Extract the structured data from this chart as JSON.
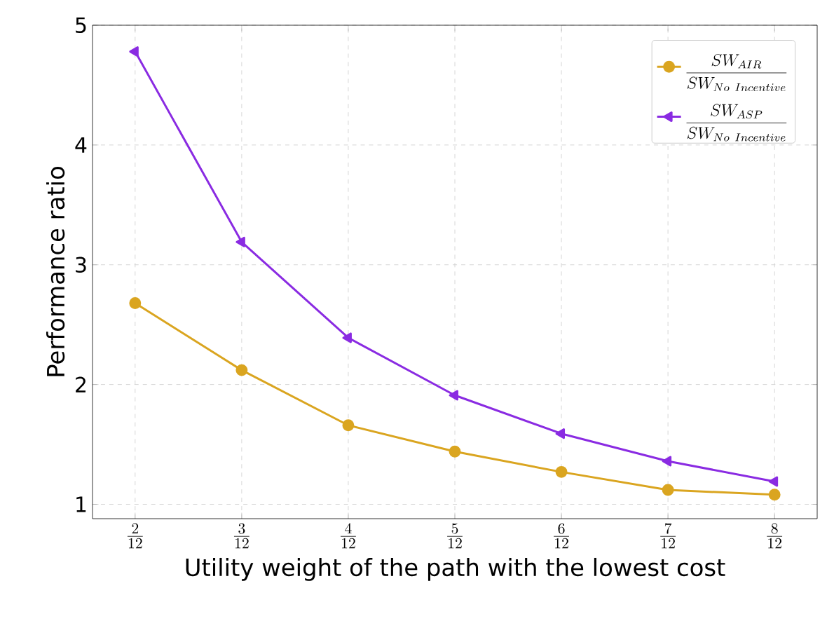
{
  "chart_data": {
    "type": "line",
    "xlabel": "Utility weight of the path with the lowest cost",
    "ylabel": "Performance ratio",
    "categories": [
      "\\frac{2}{12}",
      "\\frac{3}{12}",
      "\\frac{4}{12}",
      "\\frac{5}{12}",
      "\\frac{6}{12}",
      "\\frac{7}{12}",
      "\\frac{8}{12}"
    ],
    "series": [
      {
        "name": "\\frac{SW_{AIR}}{SW_{No\\ Incentive}}",
        "color": "#daa520",
        "marker": "circle",
        "values": [
          2.68,
          2.12,
          1.66,
          1.44,
          1.27,
          1.12,
          1.08
        ]
      },
      {
        "name": "\\frac{SW_{ASP}}{SW_{No\\ Incentive}}",
        "color": "#8a2be2",
        "marker": "triangle",
        "values": [
          4.78,
          3.19,
          2.39,
          1.91,
          1.59,
          1.36,
          1.19
        ]
      }
    ],
    "ylim": [
      0.88,
      5
    ],
    "yticks": [
      1,
      2,
      3,
      4,
      5
    ],
    "grid": true,
    "legend": "top right",
    "line_style": "solid"
  }
}
